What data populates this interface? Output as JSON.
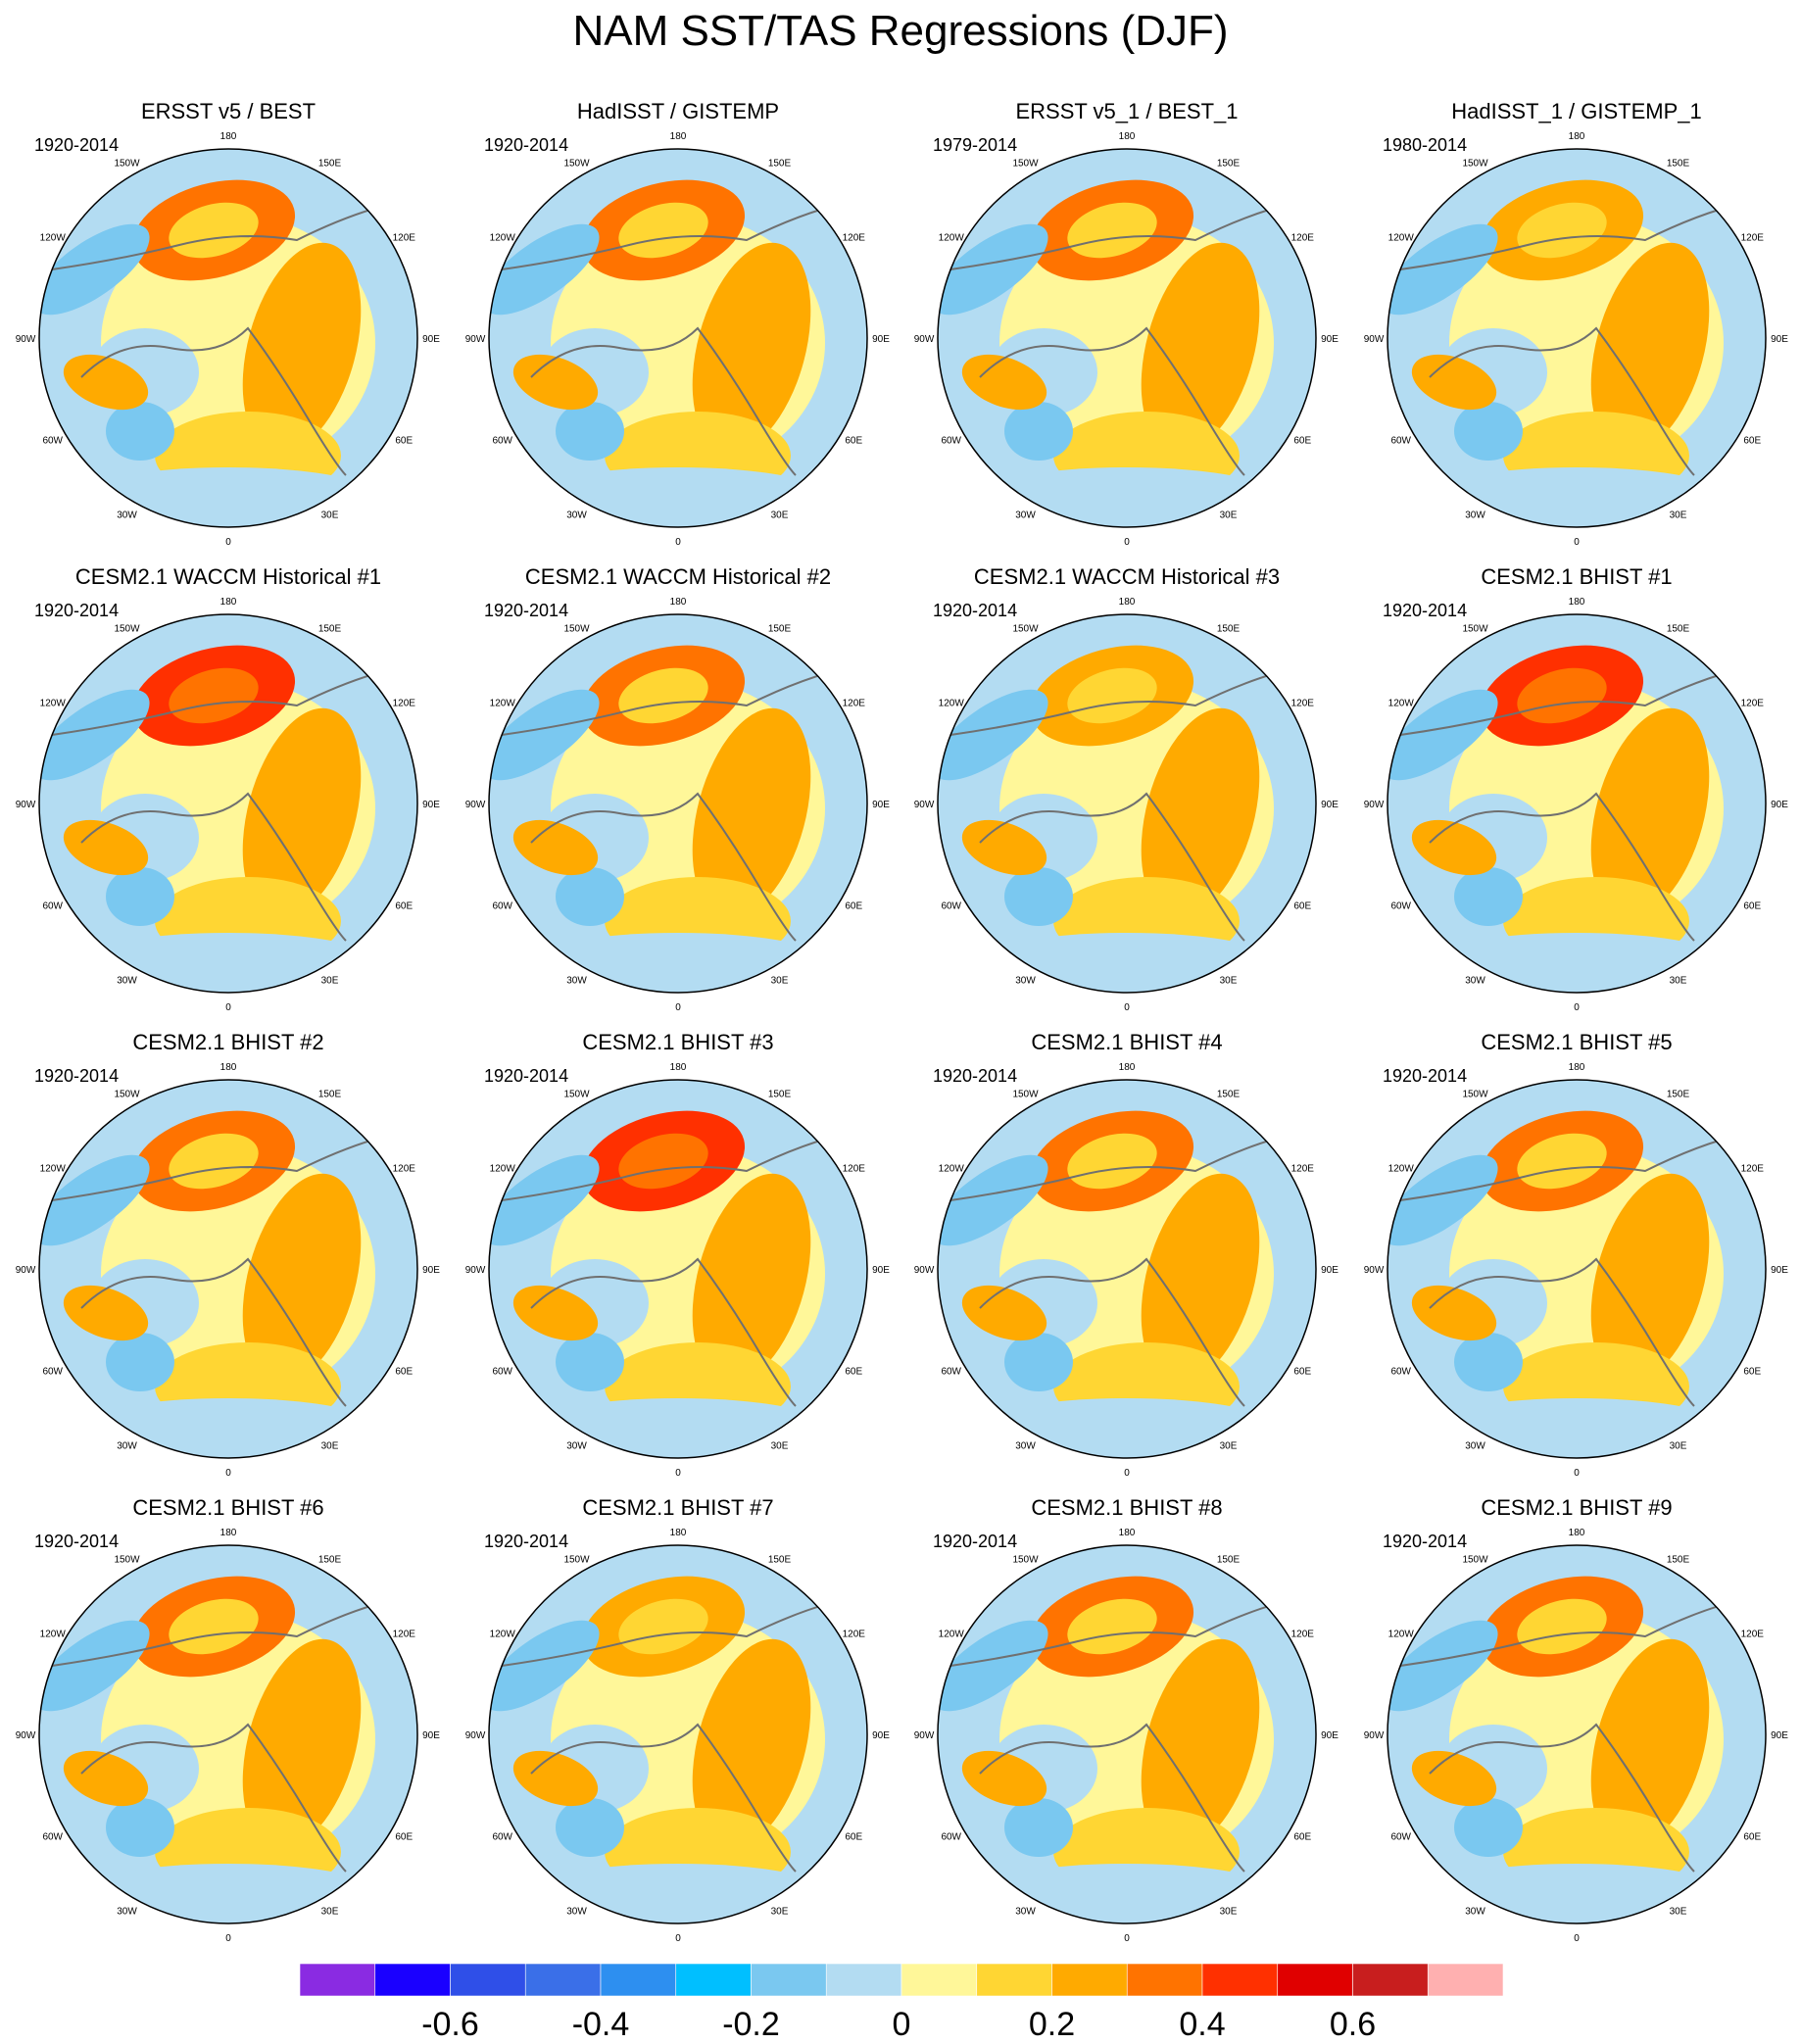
{
  "chart_data": {
    "type": "heatmap",
    "title": "NAM SST/TAS Regressions (DJF)",
    "projection": "north polar stereographic",
    "longitude_labels": [
      "180",
      "150E",
      "120E",
      "90E",
      "60E",
      "30E",
      "0",
      "30W",
      "60W",
      "90W",
      "120W",
      "150W"
    ],
    "colorbar": {
      "colors": [
        "#8a2be2",
        "#1a00ff",
        "#2f4fe8",
        "#3a6fe8",
        "#2d8ff0",
        "#00bfff",
        "#7ac8f0",
        "#b3dcf2",
        "#fff799",
        "#ffd633",
        "#ffaa00",
        "#ff7300",
        "#ff3000",
        "#e00000",
        "#c81e1e",
        "#ffb0b0"
      ],
      "levels": [
        -0.7,
        -0.6,
        -0.5,
        -0.4,
        -0.3,
        -0.2,
        -0.1,
        0,
        0.1,
        0.2,
        0.3,
        0.4,
        0.5,
        0.6,
        0.7
      ],
      "tick_labels": [
        "-0.6",
        "-0.4",
        "-0.2",
        "0",
        "0.2",
        "0.4",
        "0.6"
      ],
      "tick_values": [
        -0.6,
        -0.4,
        -0.2,
        0,
        0.2,
        0.4,
        0.6
      ]
    },
    "panels": [
      {
        "title": "ERSST v5 / BEST",
        "period": "1920-2014",
        "pac_max": 0.3
      },
      {
        "title": "HadISST / GISTEMP",
        "period": "1920-2014",
        "pac_max": 0.3
      },
      {
        "title": "ERSST v5_1 / BEST_1",
        "period": "1979-2014",
        "pac_max": 0.3
      },
      {
        "title": "HadISST_1 / GISTEMP_1",
        "period": "1980-2014",
        "pac_max": 0.2
      },
      {
        "title": "CESM2.1 WACCM Historical #1",
        "period": "1920-2014",
        "pac_max": 0.4
      },
      {
        "title": "CESM2.1 WACCM Historical #2",
        "period": "1920-2014",
        "pac_max": 0.3
      },
      {
        "title": "CESM2.1 WACCM Historical #3",
        "period": "1920-2014",
        "pac_max": 0.2
      },
      {
        "title": "CESM2.1 BHIST #1",
        "period": "1920-2014",
        "pac_max": 0.4
      },
      {
        "title": "CESM2.1 BHIST #2",
        "period": "1920-2014",
        "pac_max": 0.3
      },
      {
        "title": "CESM2.1 BHIST #3",
        "period": "1920-2014",
        "pac_max": 0.4
      },
      {
        "title": "CESM2.1 BHIST #4",
        "period": "1920-2014",
        "pac_max": 0.3
      },
      {
        "title": "CESM2.1 BHIST #5",
        "period": "1920-2014",
        "pac_max": 0.3
      },
      {
        "title": "CESM2.1 BHIST #6",
        "period": "1920-2014",
        "pac_max": 0.3
      },
      {
        "title": "CESM2.1 BHIST #7",
        "period": "1920-2014",
        "pac_max": 0.2
      },
      {
        "title": "CESM2.1 BHIST #8",
        "period": "1920-2014",
        "pac_max": 0.3
      },
      {
        "title": "CESM2.1 BHIST #9",
        "period": "1920-2014",
        "pac_max": 0.3
      }
    ]
  }
}
